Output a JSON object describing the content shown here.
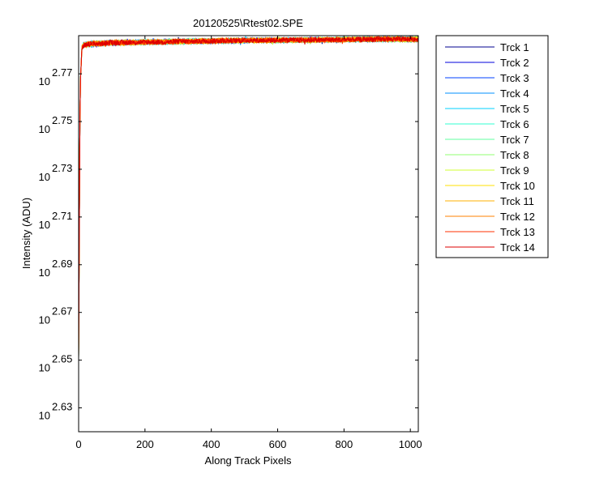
{
  "chart_data": {
    "type": "line",
    "title": "20120525\\Rtest02.SPE",
    "xlabel": "Along Track Pixels",
    "ylabel": "Intensity (ADU)",
    "xlim": [
      0,
      1024
    ],
    "ylim_log10": [
      2.62,
      2.786
    ],
    "y_scale": "log",
    "x_ticks": [
      0,
      200,
      400,
      600,
      800,
      1000
    ],
    "y_ticks": [
      {
        "base": "10",
        "exp": "2.63",
        "value": 2.63
      },
      {
        "base": "10",
        "exp": "2.65",
        "value": 2.65
      },
      {
        "base": "10",
        "exp": "2.67",
        "value": 2.67
      },
      {
        "base": "10",
        "exp": "2.69",
        "value": 2.69
      },
      {
        "base": "10",
        "exp": "2.71",
        "value": 2.71
      },
      {
        "base": "10",
        "exp": "2.73",
        "value": 2.73
      },
      {
        "base": "10",
        "exp": "2.75",
        "value": 2.75
      },
      {
        "base": "10",
        "exp": "2.77",
        "value": 2.77
      }
    ],
    "grid": false,
    "legend_position": "outside-right",
    "series": [
      {
        "name": "Trck 1",
        "color": "#00008f",
        "shape": {
          "x": [
            0,
            4,
            6,
            10,
            15,
            30,
            100,
            300,
            500,
            700,
            900,
            1024
          ],
          "log10_y": [
            2.651,
            2.752,
            2.769,
            2.781,
            2.782,
            2.7825,
            2.783,
            2.7835,
            2.784,
            2.7842,
            2.7845,
            2.7845
          ]
        }
      },
      {
        "name": "Trck 2",
        "color": "#0000dd",
        "shape": {
          "x": [
            0,
            4,
            6,
            10,
            15,
            30,
            100,
            300,
            500,
            700,
            900,
            1024
          ],
          "log10_y": [
            2.651,
            2.752,
            2.769,
            2.781,
            2.782,
            2.7825,
            2.783,
            2.7835,
            2.784,
            2.7842,
            2.7845,
            2.7845
          ]
        }
      },
      {
        "name": "Trck 3",
        "color": "#0040ff",
        "shape": {
          "x": [
            0,
            4,
            6,
            10,
            15,
            30,
            100,
            300,
            500,
            700,
            900,
            1024
          ],
          "log10_y": [
            2.651,
            2.752,
            2.769,
            2.781,
            2.782,
            2.7825,
            2.783,
            2.7835,
            2.784,
            2.7842,
            2.7845,
            2.7845
          ]
        }
      },
      {
        "name": "Trck 4",
        "color": "#0090ff",
        "shape": {
          "x": [
            0,
            4,
            6,
            10,
            15,
            30,
            100,
            300,
            500,
            700,
            900,
            1024
          ],
          "log10_y": [
            2.651,
            2.752,
            2.769,
            2.781,
            2.782,
            2.7825,
            2.783,
            2.7835,
            2.784,
            2.7842,
            2.7845,
            2.7845
          ]
        }
      },
      {
        "name": "Trck 5",
        "color": "#00d0ff",
        "shape": {
          "x": [
            0,
            4,
            6,
            10,
            15,
            30,
            100,
            300,
            500,
            700,
            900,
            1024
          ],
          "log10_y": [
            2.651,
            2.752,
            2.769,
            2.781,
            2.782,
            2.7825,
            2.783,
            2.7835,
            2.784,
            2.7842,
            2.7845,
            2.7845
          ]
        }
      },
      {
        "name": "Trck 6",
        "color": "#30ffd0",
        "shape": {
          "x": [
            0,
            4,
            6,
            10,
            15,
            30,
            100,
            300,
            500,
            700,
            900,
            1024
          ],
          "log10_y": [
            2.651,
            2.752,
            2.769,
            2.781,
            2.782,
            2.7825,
            2.783,
            2.7835,
            2.784,
            2.7842,
            2.7845,
            2.7845
          ]
        }
      },
      {
        "name": "Trck 7",
        "color": "#60ffa0",
        "shape": {
          "x": [
            0,
            4,
            6,
            10,
            15,
            30,
            100,
            300,
            500,
            700,
            900,
            1024
          ],
          "log10_y": [
            2.651,
            2.752,
            2.769,
            2.781,
            2.782,
            2.7825,
            2.783,
            2.7835,
            2.784,
            2.7842,
            2.7845,
            2.7845
          ]
        }
      },
      {
        "name": "Trck 8",
        "color": "#90ff70",
        "shape": {
          "x": [
            0,
            4,
            6,
            10,
            15,
            30,
            100,
            300,
            500,
            700,
            900,
            1024
          ],
          "log10_y": [
            2.651,
            2.752,
            2.769,
            2.781,
            2.782,
            2.7825,
            2.783,
            2.7835,
            2.784,
            2.7842,
            2.7845,
            2.7845
          ]
        }
      },
      {
        "name": "Trck 9",
        "color": "#d0ff30",
        "shape": {
          "x": [
            0,
            4,
            6,
            10,
            15,
            30,
            100,
            300,
            500,
            700,
            900,
            1024
          ],
          "log10_y": [
            2.651,
            2.752,
            2.769,
            2.781,
            2.782,
            2.7825,
            2.783,
            2.7835,
            2.784,
            2.7842,
            2.7845,
            2.7845
          ]
        }
      },
      {
        "name": "Trck 10",
        "color": "#ffe000",
        "shape": {
          "x": [
            0,
            4,
            6,
            10,
            15,
            30,
            100,
            300,
            500,
            700,
            900,
            1024
          ],
          "log10_y": [
            2.651,
            2.752,
            2.769,
            2.781,
            2.782,
            2.7825,
            2.783,
            2.7835,
            2.784,
            2.7842,
            2.7845,
            2.7845
          ]
        }
      },
      {
        "name": "Trck 11",
        "color": "#ffb000",
        "shape": {
          "x": [
            0,
            4,
            6,
            10,
            15,
            30,
            100,
            300,
            500,
            700,
            900,
            1024
          ],
          "log10_y": [
            2.651,
            2.752,
            2.769,
            2.781,
            2.782,
            2.7825,
            2.783,
            2.7835,
            2.784,
            2.7842,
            2.7845,
            2.7845
          ]
        }
      },
      {
        "name": "Trck 12",
        "color": "#ff8000",
        "shape": {
          "x": [
            0,
            4,
            6,
            10,
            15,
            30,
            100,
            300,
            500,
            700,
            900,
            1024
          ],
          "log10_y": [
            2.651,
            2.752,
            2.769,
            2.781,
            2.782,
            2.7825,
            2.783,
            2.7835,
            2.784,
            2.7842,
            2.7845,
            2.7845
          ]
        }
      },
      {
        "name": "Trck 13",
        "color": "#ff3000",
        "shape": {
          "x": [
            0,
            4,
            6,
            10,
            15,
            30,
            100,
            300,
            500,
            700,
            900,
            1024
          ],
          "log10_y": [
            2.651,
            2.752,
            2.769,
            2.781,
            2.782,
            2.7825,
            2.783,
            2.7835,
            2.784,
            2.7842,
            2.7845,
            2.7845
          ]
        }
      },
      {
        "name": "Trck 14",
        "color": "#dd0000",
        "shape": {
          "x": [
            0,
            4,
            6,
            10,
            15,
            30,
            100,
            300,
            500,
            700,
            900,
            1024
          ],
          "log10_y": [
            2.651,
            2.752,
            2.769,
            2.781,
            2.782,
            2.7825,
            2.783,
            2.7835,
            2.784,
            2.7842,
            2.7845,
            2.7845
          ]
        }
      }
    ]
  }
}
